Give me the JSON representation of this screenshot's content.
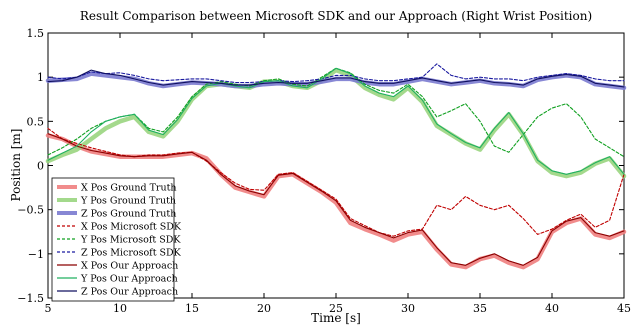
{
  "chart_data": {
    "type": "line",
    "title": "Result Comparison between Microsoft SDK and our Approach (Right Wrist Position)",
    "xlabel": "Time [s]",
    "ylabel": "Position [m]",
    "xlim": [
      5,
      45
    ],
    "ylim": [
      -1.5,
      1.5
    ],
    "x_ticks": [
      5,
      10,
      15,
      20,
      25,
      30,
      35,
      40,
      45
    ],
    "y_ticks": [
      -1.5,
      -1,
      -0.5,
      0,
      0.5,
      1,
      1.5
    ],
    "x_tick_labels": [
      "5",
      "10",
      "15",
      "20",
      "25",
      "30",
      "35",
      "40",
      "45"
    ],
    "y_tick_labels": [
      "−1.5",
      "−1",
      "−0.5",
      "0",
      "0.5",
      "1",
      "1.5"
    ],
    "grid": false,
    "legend_position": "bottom-left",
    "series": [
      {
        "name": "X Pos Ground Truth",
        "color": "#f08080",
        "style": "solid-thick",
        "x": [
          5,
          6,
          7,
          8,
          9,
          10,
          11,
          12,
          13,
          14,
          15,
          16,
          17,
          18,
          19,
          20,
          21,
          22,
          23,
          24,
          25,
          26,
          27,
          28,
          29,
          30,
          31,
          32,
          33,
          34,
          35,
          36,
          37,
          38,
          39,
          40,
          41,
          42,
          43,
          44,
          45
        ],
        "y": [
          0.34,
          0.3,
          0.22,
          0.16,
          0.13,
          0.1,
          0.1,
          0.1,
          0.1,
          0.12,
          0.14,
          0.08,
          -0.1,
          -0.25,
          -0.3,
          -0.35,
          -0.12,
          -0.1,
          -0.2,
          -0.3,
          -0.42,
          -0.65,
          -0.72,
          -0.78,
          -0.85,
          -0.78,
          -0.75,
          -0.95,
          -1.12,
          -1.15,
          -1.06,
          -1.02,
          -1.1,
          -1.15,
          -1.06,
          -0.75,
          -0.65,
          -0.6,
          -0.78,
          -0.82,
          -0.75
        ]
      },
      {
        "name": "Y Pos Ground Truth",
        "color": "#9ad580",
        "style": "solid-thick",
        "x": [
          5,
          6,
          7,
          8,
          9,
          10,
          11,
          12,
          13,
          14,
          15,
          16,
          17,
          18,
          19,
          20,
          21,
          22,
          23,
          24,
          25,
          26,
          27,
          28,
          29,
          30,
          31,
          32,
          33,
          34,
          35,
          36,
          37,
          38,
          39,
          40,
          41,
          42,
          43,
          44,
          45
        ],
        "y": [
          0.05,
          0.12,
          0.18,
          0.3,
          0.42,
          0.5,
          0.55,
          0.38,
          0.33,
          0.5,
          0.75,
          0.9,
          0.92,
          0.9,
          0.88,
          0.95,
          0.95,
          0.9,
          0.88,
          0.96,
          1.08,
          1.02,
          0.88,
          0.8,
          0.75,
          0.88,
          0.72,
          0.45,
          0.35,
          0.25,
          0.18,
          0.4,
          0.58,
          0.35,
          0.05,
          -0.08,
          -0.12,
          -0.08,
          0.02,
          0.08,
          -0.12
        ]
      },
      {
        "name": "Z Pos Ground Truth",
        "color": "#7b7bd0",
        "style": "solid-thick",
        "x": [
          5,
          6,
          7,
          8,
          9,
          10,
          11,
          12,
          13,
          14,
          15,
          16,
          17,
          18,
          19,
          20,
          21,
          22,
          23,
          24,
          25,
          26,
          27,
          28,
          29,
          30,
          31,
          32,
          33,
          34,
          35,
          36,
          37,
          38,
          39,
          40,
          41,
          42,
          43,
          44,
          45
        ],
        "y": [
          0.96,
          0.97,
          0.98,
          1.04,
          1.02,
          1.0,
          0.98,
          0.93,
          0.9,
          0.92,
          0.94,
          0.93,
          0.92,
          0.9,
          0.9,
          0.92,
          0.93,
          0.92,
          0.92,
          0.95,
          0.98,
          0.98,
          0.94,
          0.92,
          0.92,
          0.95,
          0.98,
          0.95,
          0.92,
          0.94,
          0.96,
          0.93,
          0.92,
          0.9,
          0.97,
          1.0,
          1.02,
          1.0,
          0.92,
          0.9,
          0.88
        ]
      },
      {
        "name": "X Pos Microsoft SDK",
        "color": "#c00000",
        "style": "dashed",
        "x": [
          5,
          6,
          7,
          8,
          9,
          10,
          11,
          12,
          13,
          14,
          15,
          16,
          17,
          18,
          19,
          20,
          21,
          22,
          23,
          24,
          25,
          26,
          27,
          28,
          29,
          30,
          31,
          32,
          33,
          34,
          35,
          36,
          37,
          38,
          39,
          40,
          41,
          42,
          43,
          44,
          45
        ],
        "y": [
          0.42,
          0.3,
          0.25,
          0.2,
          0.16,
          0.12,
          0.1,
          0.12,
          0.12,
          0.14,
          0.15,
          0.05,
          -0.08,
          -0.2,
          -0.27,
          -0.28,
          -0.1,
          -0.08,
          -0.18,
          -0.28,
          -0.38,
          -0.6,
          -0.68,
          -0.76,
          -0.8,
          -0.74,
          -0.72,
          -0.45,
          -0.5,
          -0.35,
          -0.45,
          -0.5,
          -0.45,
          -0.6,
          -0.78,
          -0.72,
          -0.62,
          -0.55,
          -0.7,
          -0.62,
          -0.1
        ]
      },
      {
        "name": "Y Pos Microsoft SDK",
        "color": "#10a020",
        "style": "dashed",
        "x": [
          5,
          6,
          7,
          8,
          9,
          10,
          11,
          12,
          13,
          14,
          15,
          16,
          17,
          18,
          19,
          20,
          21,
          22,
          23,
          24,
          25,
          26,
          27,
          28,
          29,
          30,
          31,
          32,
          33,
          34,
          35,
          36,
          37,
          38,
          39,
          40,
          41,
          42,
          43,
          44,
          45
        ],
        "y": [
          0.12,
          0.2,
          0.3,
          0.42,
          0.5,
          0.55,
          0.58,
          0.42,
          0.38,
          0.55,
          0.78,
          0.92,
          0.95,
          0.92,
          0.9,
          0.96,
          0.98,
          0.92,
          0.9,
          1.0,
          1.1,
          1.05,
          0.92,
          0.85,
          0.82,
          0.92,
          0.78,
          0.55,
          0.62,
          0.7,
          0.5,
          0.22,
          0.15,
          0.35,
          0.55,
          0.65,
          0.7,
          0.55,
          0.3,
          0.2,
          0.1
        ]
      },
      {
        "name": "Z Pos Microsoft SDK",
        "color": "#1a1aa0",
        "style": "dashed",
        "x": [
          5,
          6,
          7,
          8,
          9,
          10,
          11,
          12,
          13,
          14,
          15,
          16,
          17,
          18,
          19,
          20,
          21,
          22,
          23,
          24,
          25,
          26,
          27,
          28,
          29,
          30,
          31,
          32,
          33,
          34,
          35,
          36,
          37,
          38,
          39,
          40,
          41,
          42,
          43,
          44,
          45
        ],
        "y": [
          1.0,
          0.98,
          1.0,
          1.06,
          1.04,
          1.05,
          1.02,
          0.98,
          0.96,
          0.97,
          0.98,
          0.98,
          0.96,
          0.94,
          0.94,
          0.95,
          0.96,
          0.95,
          0.96,
          0.98,
          1.02,
          1.02,
          0.98,
          0.96,
          0.96,
          0.98,
          1.0,
          1.15,
          1.02,
          0.98,
          1.0,
          0.98,
          0.98,
          0.96,
          1.0,
          1.02,
          1.04,
          1.02,
          0.98,
          0.96,
          0.96
        ]
      },
      {
        "name": "X Pos Our Approach",
        "color": "#8b0000",
        "style": "solid",
        "x": [
          5,
          6,
          7,
          8,
          9,
          10,
          11,
          12,
          13,
          14,
          15,
          16,
          17,
          18,
          19,
          20,
          21,
          22,
          23,
          24,
          25,
          26,
          27,
          28,
          29,
          30,
          31,
          32,
          33,
          34,
          35,
          36,
          37,
          38,
          39,
          40,
          41,
          42,
          43,
          44,
          45
        ],
        "y": [
          0.36,
          0.3,
          0.22,
          0.17,
          0.14,
          0.11,
          0.1,
          0.11,
          0.11,
          0.13,
          0.15,
          0.06,
          -0.1,
          -0.23,
          -0.29,
          -0.33,
          -0.11,
          -0.09,
          -0.19,
          -0.29,
          -0.4,
          -0.62,
          -0.7,
          -0.76,
          -0.82,
          -0.76,
          -0.73,
          -0.93,
          -1.1,
          -1.13,
          -1.05,
          -1.0,
          -1.08,
          -1.13,
          -1.04,
          -0.74,
          -0.63,
          -0.59,
          -0.76,
          -0.8,
          -0.74
        ]
      },
      {
        "name": "Y Pos Our Approach",
        "color": "#20b060",
        "style": "solid",
        "x": [
          5,
          6,
          7,
          8,
          9,
          10,
          11,
          12,
          13,
          14,
          15,
          16,
          17,
          18,
          19,
          20,
          21,
          22,
          23,
          24,
          25,
          26,
          27,
          28,
          29,
          30,
          31,
          32,
          33,
          34,
          35,
          36,
          37,
          38,
          39,
          40,
          41,
          42,
          43,
          44,
          45
        ],
        "y": [
          0.06,
          0.14,
          0.22,
          0.38,
          0.5,
          0.55,
          0.58,
          0.4,
          0.35,
          0.52,
          0.76,
          0.9,
          0.93,
          0.9,
          0.88,
          0.95,
          0.96,
          0.9,
          0.88,
          0.98,
          1.1,
          1.04,
          0.9,
          0.82,
          0.78,
          0.9,
          0.74,
          0.47,
          0.36,
          0.26,
          0.2,
          0.42,
          0.6,
          0.36,
          0.06,
          -0.06,
          -0.1,
          -0.06,
          0.03,
          0.1,
          -0.1
        ]
      },
      {
        "name": "Z Pos Our Approach",
        "color": "#101060",
        "style": "solid",
        "x": [
          5,
          6,
          7,
          8,
          9,
          10,
          11,
          12,
          13,
          14,
          15,
          16,
          17,
          18,
          19,
          20,
          21,
          22,
          23,
          24,
          25,
          26,
          27,
          28,
          29,
          30,
          31,
          32,
          33,
          34,
          35,
          36,
          37,
          38,
          39,
          40,
          41,
          42,
          43,
          44,
          45
        ],
        "y": [
          0.95,
          0.96,
          1.0,
          1.08,
          1.04,
          1.02,
          0.98,
          0.94,
          0.91,
          0.93,
          0.95,
          0.94,
          0.93,
          0.91,
          0.91,
          0.93,
          0.94,
          0.93,
          0.93,
          0.96,
          0.99,
          0.99,
          0.95,
          0.93,
          0.93,
          0.96,
          0.99,
          0.96,
          0.93,
          0.95,
          0.97,
          0.94,
          0.93,
          0.91,
          0.98,
          1.01,
          1.03,
          1.01,
          0.93,
          0.91,
          0.89
        ]
      }
    ]
  }
}
